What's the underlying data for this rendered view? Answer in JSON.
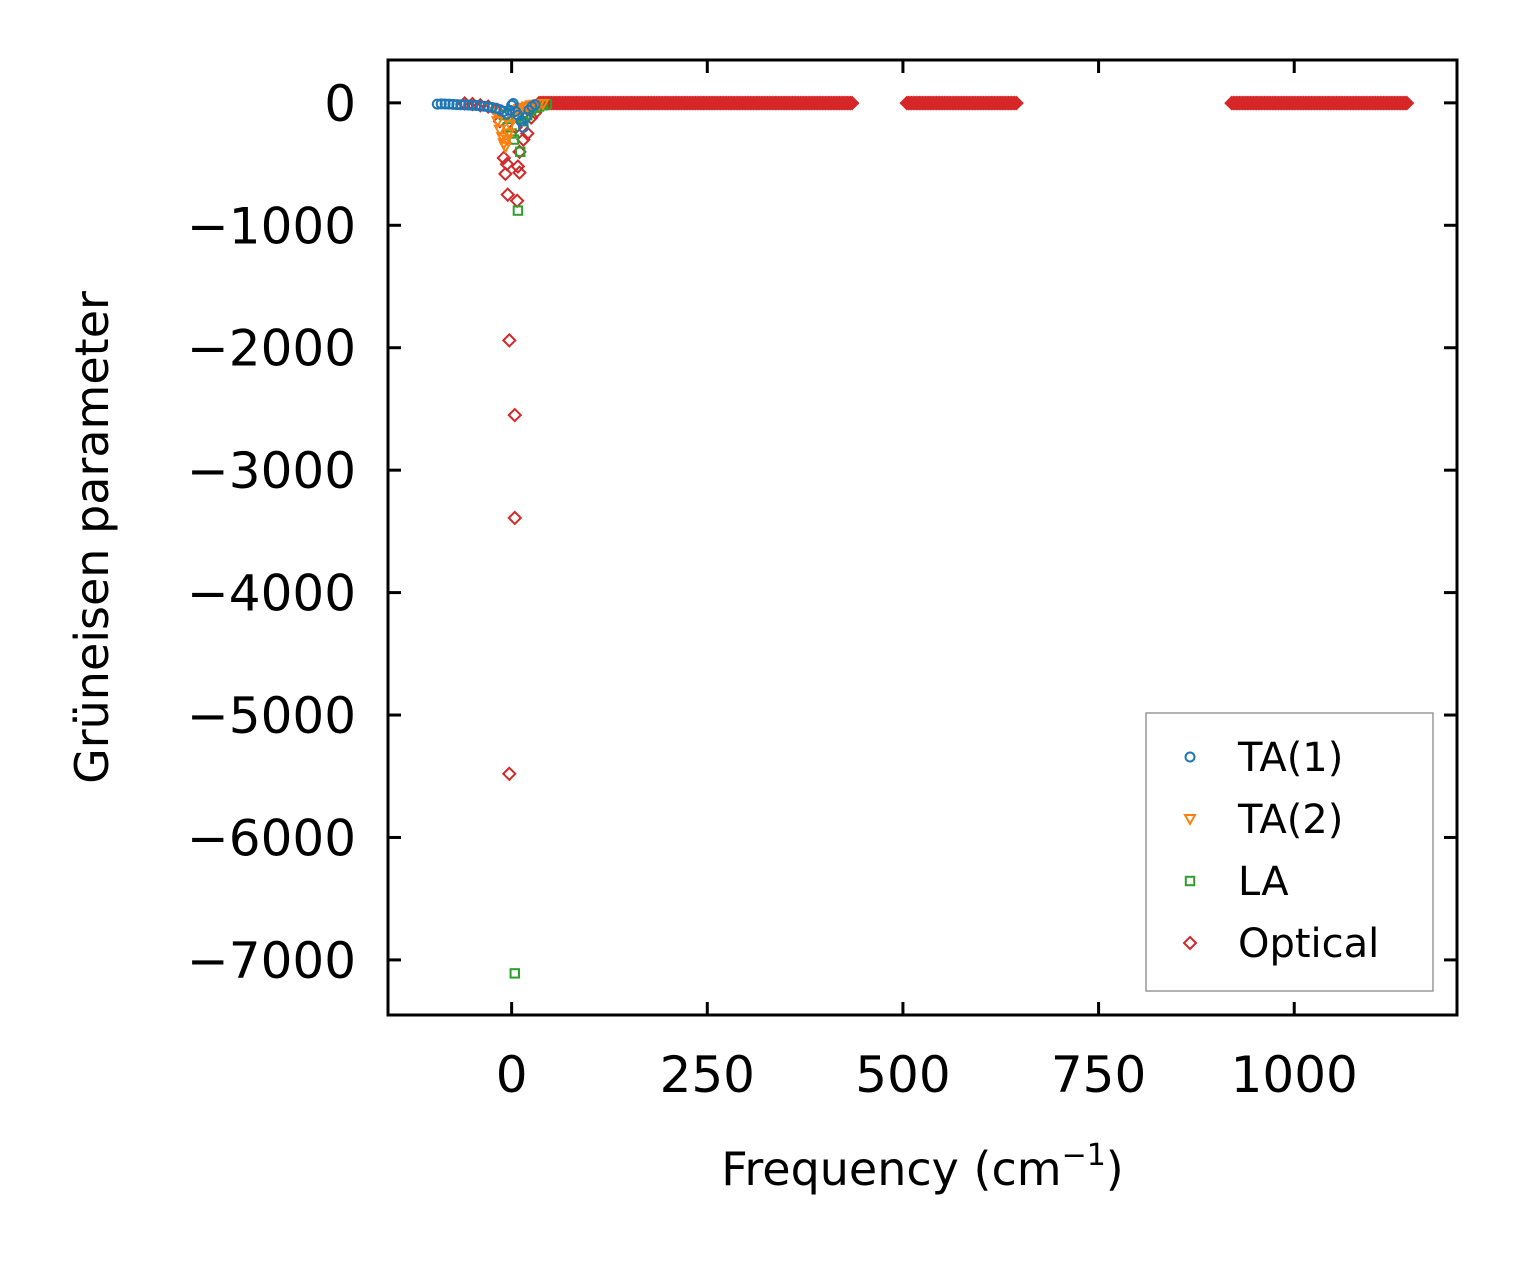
{
  "chart_data": {
    "type": "scatter",
    "xlabel": "Frequency (cm",
    "xlabel_sup": "−1",
    "xlabel_end": ")",
    "ylabel": "Grüneisen parameter",
    "xlim": [
      -158,
      1208
    ],
    "ylim": [
      -7450,
      350
    ],
    "xticks": [
      0,
      250,
      500,
      750,
      1000
    ],
    "xtick_labels": [
      "0",
      "250",
      "500",
      "750",
      "1000"
    ],
    "yticks": [
      0,
      -1000,
      -2000,
      -3000,
      -4000,
      -5000,
      -6000,
      -7000
    ],
    "ytick_labels": [
      "0",
      "−1000",
      "−2000",
      "−3000",
      "−4000",
      "−5000",
      "−6000",
      "−7000"
    ],
    "grid": false,
    "legend_position": "bottom-right",
    "series": [
      {
        "name": "TA(1)",
        "marker": "circle",
        "color": "#1f77b4",
        "points": [
          [
            -95,
            -10
          ],
          [
            -90,
            -8
          ],
          [
            -85,
            -9
          ],
          [
            -80,
            -10
          ],
          [
            -75,
            -12
          ],
          [
            -70,
            -14
          ],
          [
            -65,
            -15
          ],
          [
            -60,
            -16
          ],
          [
            -55,
            -18
          ],
          [
            -50,
            -20
          ],
          [
            -45,
            -22
          ],
          [
            -40,
            -25
          ],
          [
            -35,
            -28
          ],
          [
            -30,
            -32
          ],
          [
            -25,
            -38
          ],
          [
            -20,
            -45
          ],
          [
            -15,
            -55
          ],
          [
            -10,
            -70
          ],
          [
            -6,
            -90
          ],
          [
            -3,
            -60
          ],
          [
            0,
            -20
          ],
          [
            2,
            -5
          ],
          [
            5,
            -70
          ],
          [
            8,
            -100
          ],
          [
            12,
            -150
          ],
          [
            15,
            -200
          ],
          [
            18,
            -120
          ],
          [
            22,
            -60
          ],
          [
            26,
            -30
          ],
          [
            30,
            -15
          ]
        ]
      },
      {
        "name": "TA(2)",
        "marker": "triangle-down",
        "color": "#ff7f0e",
        "points": [
          [
            -25,
            -40
          ],
          [
            -20,
            -80
          ],
          [
            -18,
            -150
          ],
          [
            -15,
            -220
          ],
          [
            -12,
            -280
          ],
          [
            -10,
            -330
          ],
          [
            -8,
            -360
          ],
          [
            -6,
            -300
          ],
          [
            -4,
            -250
          ],
          [
            -2,
            -180
          ],
          [
            0,
            -120
          ],
          [
            3,
            -80
          ],
          [
            6,
            -60
          ],
          [
            10,
            -50
          ],
          [
            15,
            -40
          ],
          [
            20,
            -30
          ],
          [
            25,
            -20
          ],
          [
            30,
            -15
          ],
          [
            35,
            -10
          ],
          [
            40,
            -8
          ]
        ]
      },
      {
        "name": "LA",
        "marker": "square",
        "color": "#2ca02c",
        "points": [
          [
            -10,
            -100
          ],
          [
            -5,
            -200
          ],
          [
            0,
            -250
          ],
          [
            3,
            -300
          ],
          [
            6,
            -120
          ],
          [
            8,
            -880
          ],
          [
            11,
            -400
          ],
          [
            15,
            -150
          ],
          [
            20,
            -100
          ],
          [
            25,
            -60
          ],
          [
            30,
            -40
          ],
          [
            35,
            -30
          ],
          [
            40,
            -20
          ],
          [
            45,
            -10
          ],
          [
            4,
            -7110
          ]
        ]
      },
      {
        "name": "Optical",
        "marker": "diamond",
        "color": "#d62728",
        "points": [
          [
            -3,
            -5480
          ],
          [
            4,
            -3390
          ],
          [
            4,
            -2550
          ],
          [
            -3,
            -1940
          ],
          [
            -5,
            -750
          ],
          [
            7,
            -800
          ],
          [
            -8,
            -580
          ],
          [
            10,
            -570
          ],
          [
            8,
            -520
          ],
          [
            -6,
            -500
          ],
          [
            -10,
            -450
          ],
          [
            10,
            -400
          ],
          [
            15,
            -300
          ],
          [
            20,
            -250
          ],
          [
            5,
            -200
          ],
          [
            -15,
            -150
          ],
          [
            25,
            -120
          ],
          [
            30,
            -80
          ],
          [
            -20,
            -60
          ],
          [
            -30,
            -30
          ],
          [
            -40,
            -20
          ],
          [
            -50,
            -10
          ],
          [
            -60,
            -5
          ]
        ],
        "dense_bands": [
          [
            35,
            435
          ],
          [
            505,
            645
          ],
          [
            920,
            1145
          ]
        ]
      }
    ]
  }
}
